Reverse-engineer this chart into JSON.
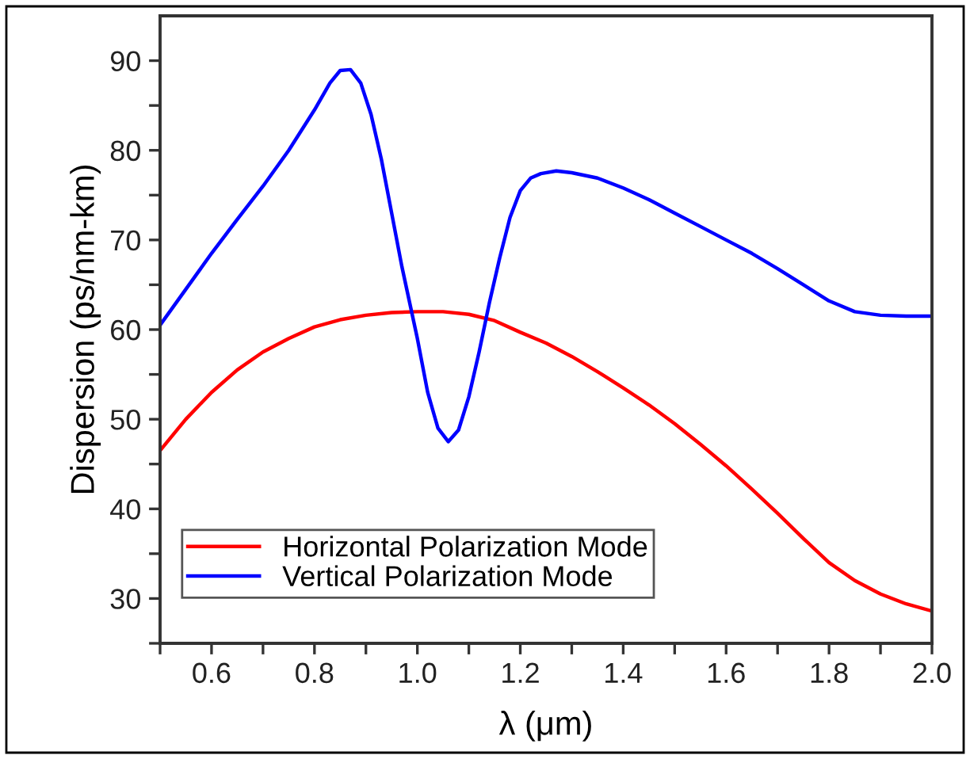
{
  "chart_data": {
    "type": "line",
    "xlabel": "λ (μm)",
    "ylabel": "Dispersion (ps/nm-km)",
    "series": [
      {
        "name": "Horizontal Polarization Mode",
        "color": "#ff0000",
        "x": [
          0.5,
          0.55,
          0.6,
          0.65,
          0.7,
          0.75,
          0.8,
          0.85,
          0.9,
          0.95,
          1.0,
          1.05,
          1.1,
          1.15,
          1.2,
          1.25,
          1.3,
          1.35,
          1.4,
          1.45,
          1.5,
          1.55,
          1.6,
          1.65,
          1.7,
          1.75,
          1.8,
          1.85,
          1.9,
          1.95,
          2.0
        ],
        "values": [
          46.5,
          50.0,
          53.0,
          55.5,
          57.5,
          59.0,
          60.3,
          61.1,
          61.6,
          61.9,
          62.0,
          62.0,
          61.7,
          61.0,
          59.7,
          58.5,
          57.0,
          55.3,
          53.5,
          51.6,
          49.5,
          47.2,
          44.8,
          42.2,
          39.5,
          36.7,
          34.0,
          32.0,
          30.5,
          29.4,
          28.6
        ]
      },
      {
        "name": "Vertical Polarization Mode",
        "color": "#0000ff",
        "x": [
          0.5,
          0.55,
          0.6,
          0.65,
          0.7,
          0.75,
          0.8,
          0.83,
          0.85,
          0.87,
          0.89,
          0.91,
          0.93,
          0.95,
          0.97,
          1.0,
          1.02,
          1.04,
          1.06,
          1.08,
          1.1,
          1.12,
          1.14,
          1.16,
          1.18,
          1.2,
          1.22,
          1.24,
          1.27,
          1.3,
          1.35,
          1.4,
          1.45,
          1.5,
          1.55,
          1.6,
          1.65,
          1.7,
          1.75,
          1.8,
          1.85,
          1.9,
          1.95,
          2.0
        ],
        "values": [
          60.5,
          64.5,
          68.5,
          72.3,
          76.0,
          80.0,
          84.5,
          87.5,
          88.9,
          89.0,
          87.5,
          84.0,
          79.0,
          73.0,
          67.0,
          59.0,
          53.0,
          49.0,
          47.5,
          48.8,
          52.5,
          57.5,
          63.0,
          68.0,
          72.5,
          75.5,
          76.9,
          77.4,
          77.7,
          77.5,
          76.9,
          75.8,
          74.5,
          73.0,
          71.5,
          70.0,
          68.5,
          66.8,
          65.0,
          63.2,
          62.0,
          61.6,
          61.5,
          61.5
        ]
      }
    ],
    "xlim": [
      0.5,
      2.0
    ],
    "xticks": [
      {
        "value": 0.5,
        "label": null
      },
      {
        "value": 0.6,
        "label": "0.6"
      },
      {
        "value": 0.7,
        "label": null
      },
      {
        "value": 0.8,
        "label": "0.8"
      },
      {
        "value": 0.9,
        "label": null
      },
      {
        "value": 1.0,
        "label": "1.0"
      },
      {
        "value": 1.1,
        "label": null
      },
      {
        "value": 1.2,
        "label": "1.2"
      },
      {
        "value": 1.3,
        "label": null
      },
      {
        "value": 1.4,
        "label": "1.4"
      },
      {
        "value": 1.5,
        "label": null
      },
      {
        "value": 1.6,
        "label": "1.6"
      },
      {
        "value": 1.7,
        "label": null
      },
      {
        "value": 1.8,
        "label": "1.8"
      },
      {
        "value": 1.9,
        "label": null
      },
      {
        "value": 2.0,
        "label": "2.0"
      }
    ],
    "ylim": [
      25,
      95
    ],
    "yticks": [
      {
        "value": 25,
        "label": null
      },
      30,
      {
        "value": 35,
        "label": null
      },
      40,
      {
        "value": 45,
        "label": null
      },
      50,
      {
        "value": 55,
        "label": null
      },
      60,
      {
        "value": 65,
        "label": null
      },
      70,
      {
        "value": 75,
        "label": null
      },
      80,
      {
        "value": 85,
        "label": null
      },
      90
    ],
    "grid": false,
    "legend": "bottom left",
    "line_style": "solid",
    "marker": "none"
  }
}
